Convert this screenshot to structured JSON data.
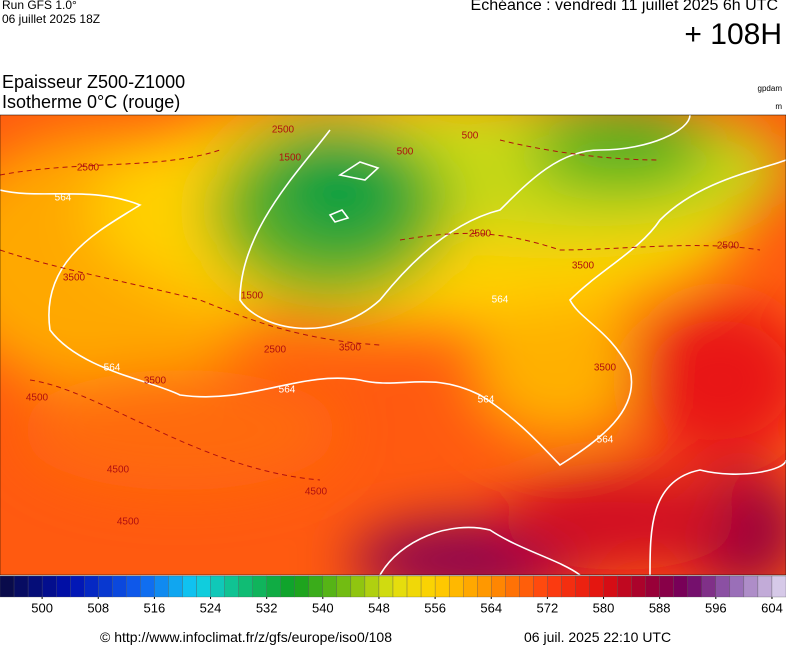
{
  "header": {
    "run": "Run GFS 1.0°",
    "run_date": "06 juillet 2025 18Z",
    "valid": "Echéance : vendredi 11 juillet 2025 6h UTC",
    "lead": "+ 108H",
    "title_line1": "Epaisseur Z500-Z1000",
    "title_line2": "Isotherme 0°C (rouge)",
    "unit1": "gpdam",
    "unit2": "m"
  },
  "map": {
    "labels": [
      "564",
      "564",
      "564",
      "564",
      "564",
      "564",
      "2500",
      "2500",
      "2500",
      "2500",
      "2500",
      "3500",
      "3500",
      "3500",
      "3500",
      "3500",
      "1500",
      "1500",
      "500",
      "500",
      "4500",
      "4500",
      "4500",
      "4500"
    ]
  },
  "colorbar": {
    "range": [
      494,
      606
    ],
    "step": 2,
    "ticks": [
      500,
      508,
      516,
      524,
      532,
      540,
      548,
      556,
      564,
      572,
      580,
      588,
      596,
      604
    ],
    "color_stops": [
      [
        494,
        "#0a0a40"
      ],
      [
        504,
        "#0010b0"
      ],
      [
        514,
        "#1060f0"
      ],
      [
        522,
        "#10d0f0"
      ],
      [
        528,
        "#10c080"
      ],
      [
        536,
        "#10a020"
      ],
      [
        544,
        "#80c010"
      ],
      [
        550,
        "#e0e010"
      ],
      [
        556,
        "#ffd000"
      ],
      [
        564,
        "#ff9000"
      ],
      [
        572,
        "#ff4010"
      ],
      [
        580,
        "#e01010"
      ],
      [
        586,
        "#a00030"
      ],
      [
        592,
        "#700060"
      ],
      [
        598,
        "#9060b0"
      ],
      [
        606,
        "#e0d8f0"
      ]
    ]
  },
  "footer": {
    "source": "© http://www.infoclimat.fr/z/gfs/europe/iso0/108",
    "generated": "06 juil. 2025 22:10 UTC"
  }
}
